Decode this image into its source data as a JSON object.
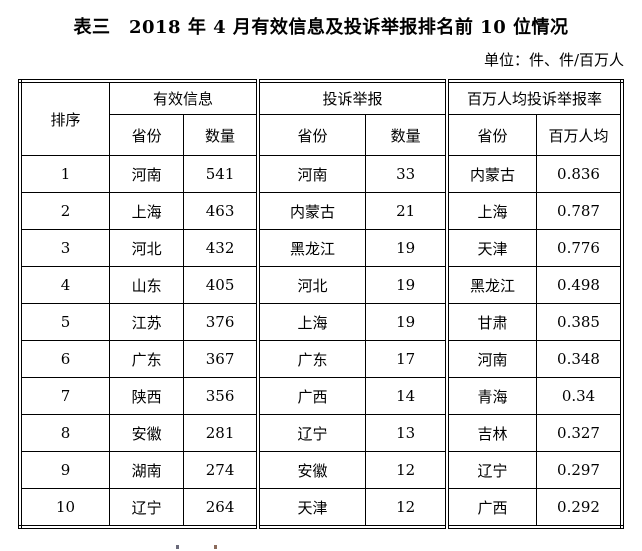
{
  "page": {
    "title": "表三　2018 年 4 月有效信息及投诉举报排名前 10 位情况",
    "unit_note": "单位：件、件/百万人"
  },
  "colors": {
    "text": "#000000",
    "border": "#000000",
    "background": "#ffffff"
  },
  "table": {
    "rank_header": "排序",
    "groups": [
      {
        "label": "有效信息",
        "sub1": "省份",
        "sub2": "数量"
      },
      {
        "label": "投诉举报",
        "sub1": "省份",
        "sub2": "数量"
      },
      {
        "label": "百万人均投诉举报率",
        "sub1": "省份",
        "sub2": "百万人均"
      }
    ],
    "rows": [
      {
        "rank": "1",
        "valid_province": "河南",
        "valid_count": "541",
        "complaint_province": "河南",
        "complaint_count": "33",
        "rate_province": "内蒙古",
        "rate_value": "0.836"
      },
      {
        "rank": "2",
        "valid_province": "上海",
        "valid_count": "463",
        "complaint_province": "内蒙古",
        "complaint_count": "21",
        "rate_province": "上海",
        "rate_value": "0.787"
      },
      {
        "rank": "3",
        "valid_province": "河北",
        "valid_count": "432",
        "complaint_province": "黑龙江",
        "complaint_count": "19",
        "rate_province": "天津",
        "rate_value": "0.776"
      },
      {
        "rank": "4",
        "valid_province": "山东",
        "valid_count": "405",
        "complaint_province": "河北",
        "complaint_count": "19",
        "rate_province": "黑龙江",
        "rate_value": "0.498"
      },
      {
        "rank": "5",
        "valid_province": "江苏",
        "valid_count": "376",
        "complaint_province": "上海",
        "complaint_count": "19",
        "rate_province": "甘肃",
        "rate_value": "0.385"
      },
      {
        "rank": "6",
        "valid_province": "广东",
        "valid_count": "367",
        "complaint_province": "广东",
        "complaint_count": "17",
        "rate_province": "河南",
        "rate_value": "0.348"
      },
      {
        "rank": "7",
        "valid_province": "陕西",
        "valid_count": "356",
        "complaint_province": "广西",
        "complaint_count": "14",
        "rate_province": "青海",
        "rate_value": "0.34"
      },
      {
        "rank": "8",
        "valid_province": "安徽",
        "valid_count": "281",
        "complaint_province": "辽宁",
        "complaint_count": "13",
        "rate_province": "吉林",
        "rate_value": "0.327"
      },
      {
        "rank": "9",
        "valid_province": "湖南",
        "valid_count": "274",
        "complaint_province": "安徽",
        "complaint_count": "12",
        "rate_province": "辽宁",
        "rate_value": "0.297"
      },
      {
        "rank": "10",
        "valid_province": "辽宁",
        "valid_count": "264",
        "complaint_province": "天津",
        "complaint_count": "12",
        "rate_province": "广西",
        "rate_value": "0.292"
      }
    ]
  }
}
